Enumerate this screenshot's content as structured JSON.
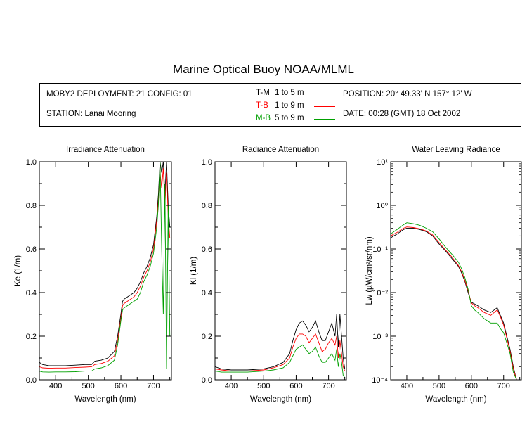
{
  "title": "Marine Optical Buoy NOAA/MLML",
  "info": {
    "deployment": "MOBY2 DEPLOYMENT: 21 CONFIG: 01",
    "station": "STATION: Lanai Mooring",
    "position": "POSITION: 20° 49.33' N   157° 12' W",
    "date": "DATE: 00:28 (GMT) 18 Oct 2002",
    "legend": [
      {
        "code": "T-M",
        "range": "1 to 5  m",
        "color": "#000000"
      },
      {
        "code": "T-B",
        "range": "1 to 9  m",
        "color": "#ff0000"
      },
      {
        "code": "M-B",
        "range": "5 to 9  m",
        "color": "#00a000"
      }
    ]
  },
  "colors": {
    "T-M": "#000000",
    "T-B": "#ff0000",
    "M-B": "#00a000"
  },
  "chart_data": [
    {
      "type": "line",
      "title": "Irradiance Attenuation",
      "xlabel": "Wavelength (nm)",
      "ylabel": "Ke  (1/m)",
      "xlim": [
        350,
        755
      ],
      "ylim": [
        0.0,
        1.0
      ],
      "xticks": [
        400,
        500,
        600,
        700
      ],
      "yticks": [
        0.0,
        0.2,
        0.4,
        0.6,
        0.8,
        1.0
      ],
      "ytick_labels": [
        "0.0",
        "0.2",
        "0.4",
        "0.6",
        "0.8",
        "1.0"
      ],
      "series": [
        {
          "name": "T-M",
          "x": [
            350,
            360,
            380,
            400,
            430,
            460,
            490,
            510,
            520,
            540,
            560,
            580,
            590,
            600,
            605,
            610,
            620,
            640,
            650,
            660,
            670,
            680,
            690,
            700,
            710,
            715,
            720,
            725,
            730,
            735,
            740,
            745,
            750
          ],
          "y": [
            0.08,
            0.07,
            0.065,
            0.065,
            0.065,
            0.067,
            0.07,
            0.07,
            0.085,
            0.09,
            0.1,
            0.13,
            0.2,
            0.3,
            0.36,
            0.37,
            0.38,
            0.4,
            0.42,
            0.45,
            0.49,
            0.52,
            0.56,
            0.62,
            0.75,
            0.85,
            1.0,
            0.95,
            1.0,
            0.85,
            1.0,
            0.8,
            0.7
          ]
        },
        {
          "name": "T-B",
          "x": [
            350,
            360,
            380,
            400,
            430,
            460,
            490,
            510,
            520,
            540,
            560,
            580,
            590,
            600,
            605,
            610,
            620,
            640,
            650,
            660,
            670,
            680,
            690,
            700,
            710,
            715,
            720,
            725,
            730,
            735,
            740,
            745,
            750
          ],
          "y": [
            0.06,
            0.055,
            0.053,
            0.054,
            0.054,
            0.056,
            0.058,
            0.06,
            0.07,
            0.075,
            0.085,
            0.11,
            0.18,
            0.28,
            0.34,
            0.35,
            0.36,
            0.38,
            0.4,
            0.43,
            0.47,
            0.5,
            0.54,
            0.6,
            0.73,
            0.82,
            0.95,
            0.88,
            0.97,
            0.8,
            0.95,
            0.75,
            0.65
          ]
        },
        {
          "name": "M-B",
          "x": [
            350,
            360,
            380,
            400,
            430,
            460,
            490,
            510,
            520,
            540,
            560,
            580,
            590,
            600,
            605,
            610,
            620,
            640,
            650,
            660,
            670,
            680,
            690,
            700,
            710,
            715,
            720,
            725,
            730,
            735,
            740,
            745,
            750
          ],
          "y": [
            0.04,
            0.036,
            0.035,
            0.036,
            0.036,
            0.037,
            0.04,
            0.04,
            0.05,
            0.055,
            0.065,
            0.09,
            0.16,
            0.27,
            0.32,
            0.33,
            0.34,
            0.36,
            0.37,
            0.4,
            0.45,
            0.48,
            0.52,
            0.58,
            0.7,
            0.8,
            1.0,
            0.6,
            0.3,
            0.9,
            0.05,
            0.8,
            0.2
          ]
        }
      ]
    },
    {
      "type": "line",
      "title": "Radiance Attenuation",
      "xlabel": "Wavelength (nm)",
      "ylabel": "Kl  (1/m)",
      "xlim": [
        350,
        755
      ],
      "ylim": [
        0.0,
        1.0
      ],
      "xticks": [
        400,
        500,
        600,
        700
      ],
      "yticks": [
        0.0,
        0.2,
        0.4,
        0.6,
        0.8,
        1.0
      ],
      "ytick_labels": [
        "0.0",
        "0.2",
        "0.4",
        "0.6",
        "0.8",
        "1.0"
      ],
      "series": [
        {
          "name": "T-M",
          "x": [
            350,
            370,
            400,
            450,
            500,
            530,
            560,
            580,
            590,
            600,
            610,
            620,
            630,
            640,
            650,
            660,
            670,
            680,
            690,
            700,
            710,
            720,
            725,
            730,
            735,
            740,
            745,
            750
          ],
          "y": [
            0.06,
            0.05,
            0.045,
            0.045,
            0.05,
            0.06,
            0.08,
            0.12,
            0.18,
            0.23,
            0.26,
            0.27,
            0.25,
            0.22,
            0.24,
            0.27,
            0.22,
            0.18,
            0.18,
            0.22,
            0.26,
            0.2,
            0.3,
            0.15,
            0.3,
            0.2,
            0.1,
            0.05
          ]
        },
        {
          "name": "T-B",
          "x": [
            350,
            370,
            400,
            450,
            500,
            530,
            560,
            580,
            590,
            600,
            610,
            620,
            630,
            640,
            650,
            660,
            670,
            680,
            690,
            700,
            710,
            720,
            725,
            730,
            735,
            740,
            745,
            750
          ],
          "y": [
            0.05,
            0.045,
            0.04,
            0.04,
            0.045,
            0.055,
            0.07,
            0.1,
            0.15,
            0.19,
            0.21,
            0.21,
            0.2,
            0.17,
            0.19,
            0.21,
            0.17,
            0.13,
            0.14,
            0.17,
            0.19,
            0.16,
            0.2,
            0.1,
            0.18,
            0.12,
            0.06,
            0.04
          ]
        },
        {
          "name": "M-B",
          "x": [
            350,
            370,
            400,
            450,
            500,
            530,
            560,
            580,
            590,
            600,
            610,
            620,
            630,
            640,
            650,
            660,
            670,
            680,
            690,
            700,
            710,
            720,
            725,
            730,
            735,
            740,
            745,
            750
          ],
          "y": [
            0.04,
            0.035,
            0.035,
            0.035,
            0.04,
            0.045,
            0.055,
            0.08,
            0.11,
            0.14,
            0.15,
            0.16,
            0.14,
            0.12,
            0.13,
            0.15,
            0.11,
            0.08,
            0.08,
            0.1,
            0.12,
            0.09,
            0.14,
            0.06,
            0.12,
            0.08,
            0.02,
            0.01
          ]
        }
      ]
    },
    {
      "type": "line",
      "title": "Water Leaving Radiance",
      "xlabel": "Wavelength (nm)",
      "ylabel": "Lw  (µW/cm²/sr/nm)",
      "xlim": [
        350,
        755
      ],
      "ylim": [
        0.0001,
        10
      ],
      "yscale": "log",
      "xticks": [
        400,
        500,
        600,
        700
      ],
      "yticks": [
        0.0001,
        0.001,
        0.01,
        0.1,
        1,
        10
      ],
      "ytick_labels": [
        "10⁻⁴",
        "10⁻³",
        "10⁻²",
        "10⁻¹",
        "10⁰",
        "10¹"
      ],
      "series": [
        {
          "name": "T-M",
          "x": [
            350,
            360,
            370,
            380,
            390,
            400,
            420,
            440,
            460,
            480,
            500,
            520,
            540,
            560,
            570,
            580,
            590,
            600,
            610,
            620,
            640,
            660,
            680,
            690,
            700,
            710,
            720,
            730,
            740
          ],
          "y": [
            0.18,
            0.2,
            0.22,
            0.25,
            0.28,
            0.3,
            0.3,
            0.28,
            0.25,
            0.2,
            0.13,
            0.09,
            0.06,
            0.04,
            0.028,
            0.018,
            0.01,
            0.006,
            0.0055,
            0.005,
            0.004,
            0.0035,
            0.0045,
            0.003,
            0.002,
            0.001,
            0.0005,
            0.0002,
            0.0001
          ]
        },
        {
          "name": "T-B",
          "x": [
            350,
            360,
            370,
            380,
            390,
            400,
            420,
            440,
            460,
            480,
            500,
            520,
            540,
            560,
            570,
            580,
            590,
            600,
            610,
            620,
            640,
            660,
            680,
            690,
            700,
            710,
            720,
            730,
            740
          ],
          "y": [
            0.2,
            0.22,
            0.24,
            0.27,
            0.3,
            0.32,
            0.31,
            0.29,
            0.26,
            0.21,
            0.14,
            0.095,
            0.065,
            0.042,
            0.03,
            0.019,
            0.011,
            0.0058,
            0.005,
            0.0045,
            0.0035,
            0.003,
            0.004,
            0.0028,
            0.0018,
            0.0009,
            0.00045,
            0.00018,
            0.0001
          ]
        },
        {
          "name": "M-B",
          "x": [
            350,
            360,
            370,
            380,
            390,
            400,
            420,
            440,
            460,
            480,
            500,
            520,
            540,
            560,
            570,
            580,
            590,
            600,
            610,
            620,
            640,
            660,
            680,
            690,
            700,
            710,
            720,
            730,
            740
          ],
          "y": [
            0.22,
            0.25,
            0.28,
            0.32,
            0.36,
            0.4,
            0.38,
            0.35,
            0.3,
            0.25,
            0.17,
            0.11,
            0.075,
            0.05,
            0.035,
            0.022,
            0.012,
            0.005,
            0.004,
            0.0035,
            0.0025,
            0.002,
            0.002,
            0.0015,
            0.0012,
            0.0007,
            0.0004,
            0.00015,
            0.0001
          ]
        }
      ]
    }
  ]
}
